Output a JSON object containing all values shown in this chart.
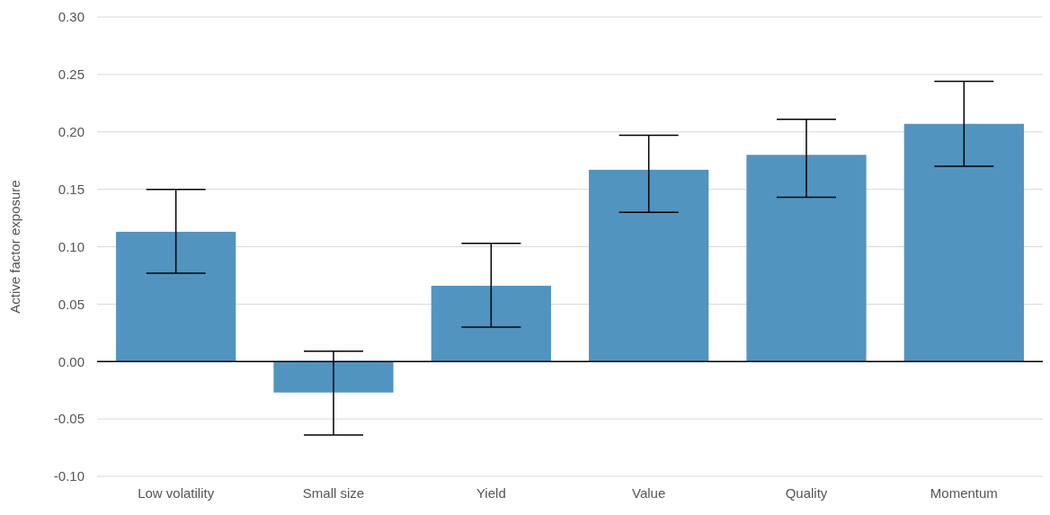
{
  "chart_data": {
    "type": "bar",
    "ylabel": "Active factor exposure",
    "categories": [
      "Low volatility",
      "Small size",
      "Yield",
      "Value",
      "Quality",
      "Momentum"
    ],
    "values": [
      0.113,
      -0.027,
      0.066,
      0.167,
      0.18,
      0.207
    ],
    "errors": [
      [
        0.077,
        0.15
      ],
      [
        -0.064,
        0.009
      ],
      [
        0.03,
        0.103
      ],
      [
        0.13,
        0.197
      ],
      [
        0.143,
        0.211
      ],
      [
        0.17,
        0.244
      ]
    ],
    "color": "#5294c0",
    "ylim": [
      -0.1,
      0.3
    ],
    "yticks": [
      {
        "value": -0.1,
        "label": "-0.10"
      },
      {
        "value": -0.05,
        "label": "-0.05"
      },
      {
        "value": 0,
        "label": "0.00"
      },
      {
        "value": 0.05,
        "label": "0.05"
      },
      {
        "value": 0.1,
        "label": "0.10"
      },
      {
        "value": 0.15,
        "label": "0.15"
      },
      {
        "value": 0.2,
        "label": "0.20"
      },
      {
        "value": 0.25,
        "label": "0.25"
      },
      {
        "value": 0.3,
        "label": "0.30"
      }
    ],
    "grid": "y"
  }
}
